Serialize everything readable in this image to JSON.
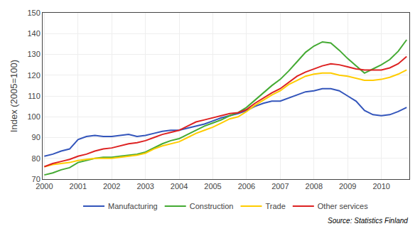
{
  "chart_data": {
    "type": "line",
    "ylabel": "Index (2005=100)",
    "annotations": [
      "Source: Statistics Finland"
    ],
    "x": [
      2000,
      2000.25,
      2000.5,
      2000.75,
      2001,
      2001.25,
      2001.5,
      2001.75,
      2002,
      2002.25,
      2002.5,
      2002.75,
      2003,
      2003.25,
      2003.5,
      2003.75,
      2004,
      2004.25,
      2004.5,
      2004.75,
      2005,
      2005.25,
      2005.5,
      2005.75,
      2006,
      2006.25,
      2006.5,
      2006.75,
      2007,
      2007.25,
      2007.5,
      2007.75,
      2008,
      2008.25,
      2008.5,
      2008.75,
      2009,
      2009.25,
      2009.5,
      2009.75,
      2010,
      2010.25,
      2010.5,
      2010.75
    ],
    "series": [
      {
        "name": "Manufacturing",
        "color": "#3355BB",
        "values": [
          81.0,
          82.0,
          83.5,
          84.5,
          89.0,
          90.5,
          91.0,
          90.5,
          90.5,
          91.0,
          91.5,
          90.5,
          91.0,
          92.0,
          93.0,
          93.5,
          93.5,
          94.5,
          95.5,
          96.5,
          98.0,
          99.5,
          100.5,
          101.5,
          103.0,
          105.0,
          106.5,
          107.5,
          107.5,
          109.0,
          110.5,
          112.0,
          112.5,
          113.5,
          113.5,
          112.5,
          110.0,
          107.5,
          103.0,
          101.0,
          100.5,
          101.0,
          102.5,
          104.5
        ]
      },
      {
        "name": "Construction",
        "color": "#44AA33",
        "values": [
          72.0,
          73.0,
          74.5,
          75.5,
          78.0,
          79.0,
          80.0,
          80.5,
          80.5,
          81.0,
          81.5,
          82.0,
          83.0,
          85.0,
          87.0,
          88.5,
          89.5,
          91.5,
          93.5,
          95.5,
          97.0,
          98.5,
          100.5,
          102.0,
          104.5,
          108.0,
          111.5,
          115.0,
          118.0,
          122.0,
          126.5,
          131.0,
          134.0,
          136.0,
          135.5,
          132.0,
          128.0,
          124.5,
          121.0,
          123.0,
          125.0,
          127.5,
          131.5,
          137.0
        ]
      },
      {
        "name": "Trade",
        "color": "#FFCC00",
        "values": [
          76.0,
          77.0,
          77.5,
          78.0,
          79.0,
          79.5,
          80.0,
          80.0,
          80.0,
          80.5,
          81.0,
          81.5,
          82.5,
          84.5,
          86.0,
          87.0,
          88.0,
          90.0,
          92.0,
          93.5,
          95.0,
          97.0,
          99.0,
          100.0,
          102.5,
          105.5,
          108.0,
          110.5,
          112.5,
          115.5,
          117.5,
          119.5,
          120.5,
          121.0,
          121.0,
          120.0,
          119.5,
          118.5,
          117.5,
          117.5,
          118.0,
          119.0,
          120.5,
          122.5
        ]
      },
      {
        "name": "Other services",
        "color": "#DD2222",
        "values": [
          76.0,
          77.5,
          78.5,
          79.5,
          81.0,
          82.0,
          83.5,
          84.5,
          85.0,
          86.0,
          87.0,
          87.5,
          88.5,
          90.0,
          91.5,
          92.5,
          93.5,
          95.5,
          97.5,
          98.5,
          99.5,
          100.5,
          101.5,
          102.0,
          103.5,
          106.5,
          109.0,
          111.5,
          113.5,
          116.5,
          119.5,
          121.5,
          123.0,
          124.5,
          125.5,
          125.0,
          124.0,
          123.0,
          122.5,
          122.5,
          122.5,
          123.5,
          125.5,
          129.0
        ]
      }
    ],
    "xlim": [
      1999.95,
      2010.83
    ],
    "xticks": [
      2000,
      2001,
      2002,
      2003,
      2004,
      2005,
      2006,
      2007,
      2008,
      2009,
      2010
    ],
    "ylim": [
      70,
      150
    ],
    "yticks": [
      70,
      80,
      90,
      100,
      110,
      120,
      130,
      140,
      150
    ],
    "grid": true,
    "legend": "bottom"
  }
}
